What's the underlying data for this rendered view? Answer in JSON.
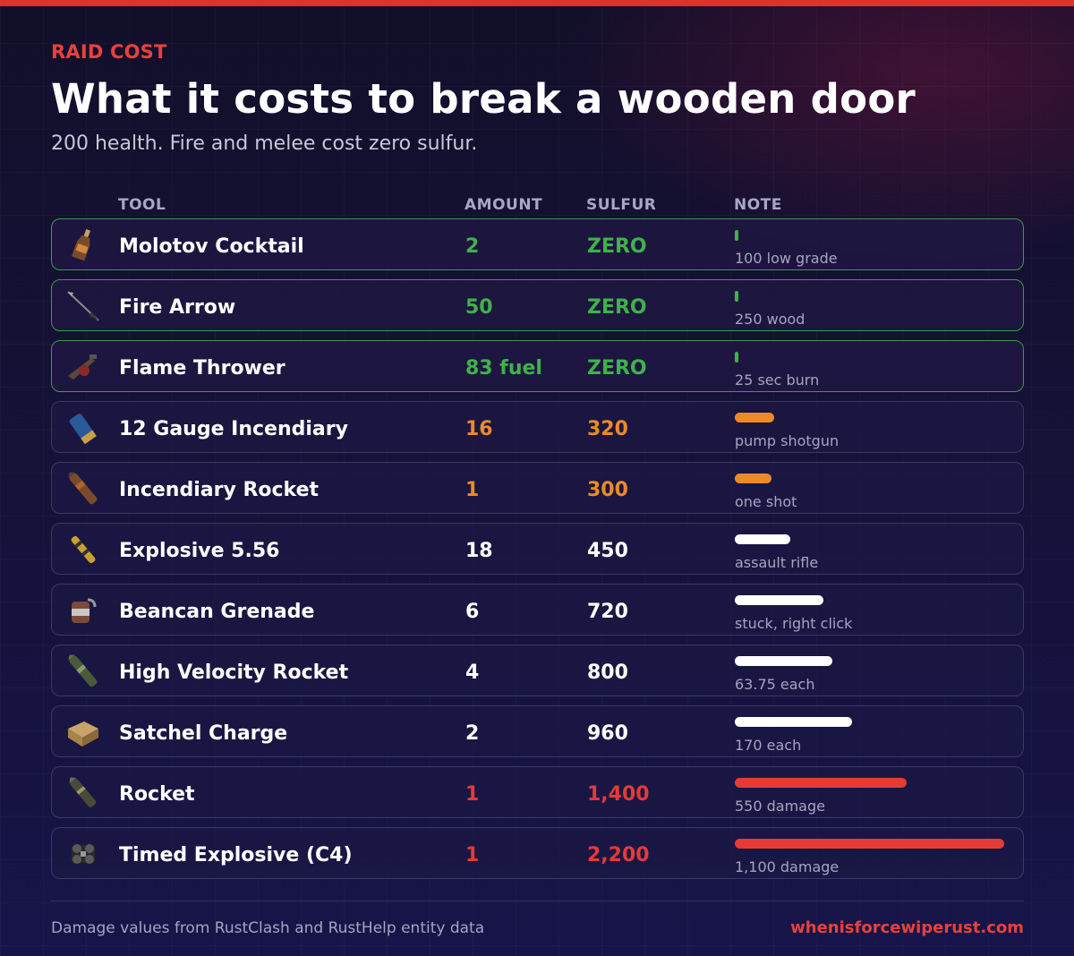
{
  "header": {
    "eyebrow": "RAID COST",
    "title": "What it costs to break a wooden door",
    "subtitle": "200 health. Fire and melee cost zero sulfur."
  },
  "columns": {
    "tool": "TOOL",
    "amount": "AMOUNT",
    "sulfur": "SULFUR",
    "note": "NOTE"
  },
  "colors": {
    "accent_red": "#e63a36",
    "fire_green": "#3fb24a",
    "mid_orange": "#ec8a28",
    "neutral_white": "#ffffff"
  },
  "rows": [
    {
      "tool": "Molotov Cocktail",
      "icon": "molotov-icon",
      "amount": "2",
      "sulfur": "ZERO",
      "note": "100 low grade",
      "tier": "green",
      "sulfur_value": 0
    },
    {
      "tool": "Fire Arrow",
      "icon": "fire-arrow-icon",
      "amount": "50",
      "sulfur": "ZERO",
      "note": "250 wood",
      "tier": "green",
      "sulfur_value": 0
    },
    {
      "tool": "Flame Thrower",
      "icon": "flamethrower-icon",
      "amount": "83 fuel",
      "sulfur": "ZERO",
      "note": "25 sec burn",
      "tier": "green",
      "sulfur_value": 0
    },
    {
      "tool": "12 Gauge Incendiary",
      "icon": "shotgun-shell-icon",
      "amount": "16",
      "sulfur": "320",
      "note": "pump shotgun",
      "tier": "orange",
      "sulfur_value": 320
    },
    {
      "tool": "Incendiary Rocket",
      "icon": "incendiary-rocket-icon",
      "amount": "1",
      "sulfur": "300",
      "note": "one shot",
      "tier": "orange",
      "sulfur_value": 300
    },
    {
      "tool": "Explosive 5.56",
      "icon": "explosive-ammo-icon",
      "amount": "18",
      "sulfur": "450",
      "note": "assault rifle",
      "tier": "white",
      "sulfur_value": 450
    },
    {
      "tool": "Beancan Grenade",
      "icon": "beancan-grenade-icon",
      "amount": "6",
      "sulfur": "720",
      "note": "stuck, right click",
      "tier": "white",
      "sulfur_value": 720
    },
    {
      "tool": "High Velocity Rocket",
      "icon": "hv-rocket-icon",
      "amount": "4",
      "sulfur": "800",
      "note": "63.75 each",
      "tier": "white",
      "sulfur_value": 800
    },
    {
      "tool": "Satchel Charge",
      "icon": "satchel-charge-icon",
      "amount": "2",
      "sulfur": "960",
      "note": "170 each",
      "tier": "white",
      "sulfur_value": 960
    },
    {
      "tool": "Rocket",
      "icon": "rocket-icon",
      "amount": "1",
      "sulfur": "1,400",
      "note": "550 damage",
      "tier": "red",
      "sulfur_value": 1400
    },
    {
      "tool": "Timed Explosive (C4)",
      "icon": "c4-icon",
      "amount": "1",
      "sulfur": "2,200",
      "note": "1,100 damage",
      "tier": "red",
      "sulfur_value": 2200
    }
  ],
  "footer": {
    "source": "Damage values from RustClash and RustHelp entity data",
    "site": "whenisforcewiperust.com"
  }
}
